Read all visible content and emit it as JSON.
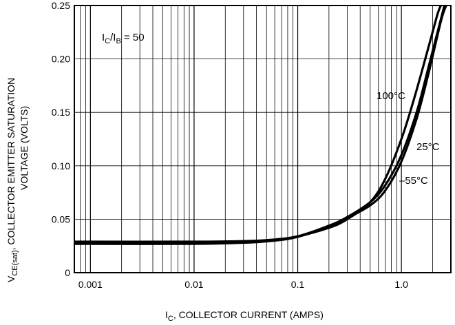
{
  "chart_data": {
    "type": "line",
    "x_scale": "log",
    "xlim": [
      0.0007,
      3.0
    ],
    "ylim": [
      0,
      0.25
    ],
    "grid": "on",
    "x_ticks": [
      {
        "value": 0.001,
        "label": "0.001"
      },
      {
        "value": 0.01,
        "label": "0.01"
      },
      {
        "value": 0.1,
        "label": "0.1"
      },
      {
        "value": 1.0,
        "label": "1.0"
      }
    ],
    "y_ticks": [
      {
        "value": 0,
        "label": "0"
      },
      {
        "value": 0.05,
        "label": "0.05"
      },
      {
        "value": 0.1,
        "label": "0.10"
      },
      {
        "value": 0.15,
        "label": "0.15"
      },
      {
        "value": 0.2,
        "label": "0.20"
      },
      {
        "value": 0.25,
        "label": "0.25"
      }
    ],
    "xlabel": {
      "main": "I",
      "sub": "C",
      "rest": ", COLLECTOR CURRENT (AMPS)"
    },
    "ylabel": {
      "line1_main": "V",
      "line1_sub": "CE(sat)",
      "line1_rest": ", COLLECTOR EMITTER SATURATION",
      "line2": "VOLTAGE (VOLTS)"
    },
    "condition": {
      "a": "I",
      "a_sub": "C",
      "mid": "/I",
      "b_sub": "B",
      "rest": " = 50"
    },
    "series": [
      {
        "name": "100°C",
        "points": [
          [
            0.0007,
            0.029
          ],
          [
            0.01,
            0.029
          ],
          [
            0.03,
            0.0295
          ],
          [
            0.06,
            0.031
          ],
          [
            0.1,
            0.034
          ],
          [
            0.2,
            0.042
          ],
          [
            0.3,
            0.05
          ],
          [
            0.5,
            0.066
          ],
          [
            0.7,
            0.088
          ],
          [
            1.0,
            0.125
          ],
          [
            1.3,
            0.16
          ],
          [
            1.7,
            0.2
          ],
          [
            2.2,
            0.24
          ],
          [
            2.4,
            0.25
          ]
        ]
      },
      {
        "name": "25°C",
        "points": [
          [
            0.0007,
            0.028
          ],
          [
            0.01,
            0.028
          ],
          [
            0.03,
            0.0285
          ],
          [
            0.06,
            0.0305
          ],
          [
            0.1,
            0.034
          ],
          [
            0.2,
            0.044
          ],
          [
            0.3,
            0.052
          ],
          [
            0.5,
            0.066
          ],
          [
            0.7,
            0.082
          ],
          [
            1.0,
            0.11
          ],
          [
            1.4,
            0.15
          ],
          [
            1.8,
            0.19
          ],
          [
            2.3,
            0.23
          ],
          [
            2.6,
            0.25
          ]
        ]
      },
      {
        "name": "–55°C",
        "points": [
          [
            0.0007,
            0.027
          ],
          [
            0.01,
            0.027
          ],
          [
            0.03,
            0.028
          ],
          [
            0.06,
            0.03
          ],
          [
            0.1,
            0.0335
          ],
          [
            0.2,
            0.043
          ],
          [
            0.3,
            0.051
          ],
          [
            0.5,
            0.063
          ],
          [
            0.7,
            0.077
          ],
          [
            1.0,
            0.104
          ],
          [
            1.4,
            0.144
          ],
          [
            1.8,
            0.184
          ],
          [
            2.4,
            0.235
          ],
          [
            2.7,
            0.25
          ]
        ]
      }
    ],
    "curve_labels": [
      {
        "text": "100°C",
        "series": "100°C"
      },
      {
        "text": "25°C",
        "series": "25°C"
      },
      {
        "text": "–55°C",
        "series": "–55°C"
      }
    ]
  }
}
